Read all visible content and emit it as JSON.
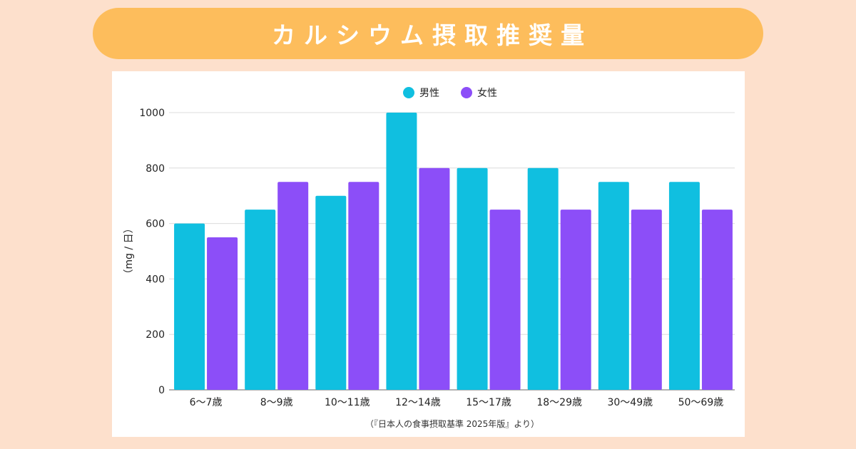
{
  "banner": {
    "title": "カルシウム摂取推奨量"
  },
  "chart_data": {
    "type": "bar",
    "categories": [
      "6〜7歳",
      "8〜9歳",
      "10〜11歳",
      "12〜14歳",
      "15〜17歳",
      "18〜29歳",
      "30〜49歳",
      "50〜69歳"
    ],
    "series": [
      {
        "name": "男性",
        "color": "#10bfe0",
        "values": [
          600,
          650,
          700,
          1000,
          800,
          800,
          750,
          750
        ]
      },
      {
        "name": "女性",
        "color": "#8c4ef8",
        "values": [
          550,
          750,
          750,
          800,
          650,
          650,
          650,
          650
        ]
      }
    ],
    "ylabel": "（mg / 日）",
    "ylim": [
      0,
      1000
    ],
    "yticks": [
      0,
      200,
      400,
      600,
      800,
      1000
    ],
    "grid": true,
    "legend": "top-center",
    "source": "（『日本人の食事摂取基準 2025年版』より）"
  }
}
